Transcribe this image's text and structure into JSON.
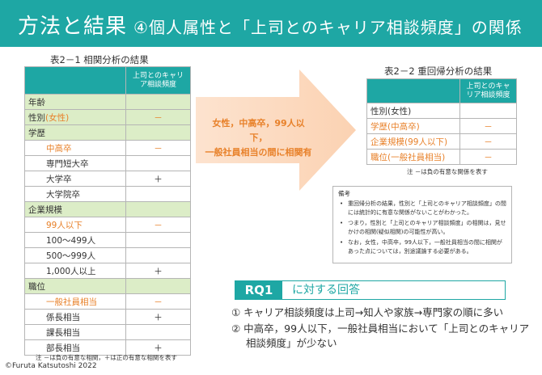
{
  "title": {
    "main": "方法と結果",
    "sub": "④個人属性と「上司とのキャリア相談頻度」の関係"
  },
  "table1": {
    "caption": "表2－1 相関分析の結果",
    "header": "上司とのキャリア相談頻度",
    "rows": [
      {
        "label": "年齢",
        "mark": "",
        "type": "cat"
      },
      {
        "label": "性別",
        "suffix": "(女性)",
        "mark": "－",
        "type": "cat"
      },
      {
        "label": "学歴",
        "mark": "",
        "type": "cat"
      },
      {
        "label": "中高卒",
        "mark": "－",
        "type": "sub-orange"
      },
      {
        "label": "専門短大卒",
        "mark": "",
        "type": "sub"
      },
      {
        "label": "大学卒",
        "mark": "＋",
        "type": "sub"
      },
      {
        "label": "大学院卒",
        "mark": "",
        "type": "sub"
      },
      {
        "label": "企業規模",
        "mark": "",
        "type": "cat"
      },
      {
        "label": "99人以下",
        "mark": "－",
        "type": "sub-orange"
      },
      {
        "label": "100～499人",
        "mark": "",
        "type": "sub"
      },
      {
        "label": "500～999人",
        "mark": "",
        "type": "sub"
      },
      {
        "label": "1,000人以上",
        "mark": "＋",
        "type": "sub"
      },
      {
        "label": "職位",
        "mark": "",
        "type": "cat"
      },
      {
        "label": "一般社員相当",
        "mark": "－",
        "type": "sub-orange"
      },
      {
        "label": "係長相当",
        "mark": "＋",
        "type": "sub"
      },
      {
        "label": "課長相当",
        "mark": "",
        "type": "sub"
      },
      {
        "label": "部長相当",
        "mark": "＋",
        "type": "sub"
      }
    ],
    "note": "注 －は負の有意な相関，＋は正の有意な相関を表す"
  },
  "arrow": {
    "line1": "女性，中高卒，99人以下，",
    "line2": "一般社員相当の間に相関有"
  },
  "table2": {
    "caption": "表2－2 重回帰分析の結果",
    "header": "上司とのキャリア相談頻度",
    "rows": [
      {
        "label": "性別(女性)",
        "mark": "",
        "orange": false
      },
      {
        "label": "学歴(中高卒)",
        "mark": "－",
        "orange": true
      },
      {
        "label": "企業規模(99人以下)",
        "mark": "－",
        "orange": true
      },
      {
        "label": "職位(一般社員相当)",
        "mark": "－",
        "orange": true
      }
    ],
    "note": "注 －は負の有意な関係を表す"
  },
  "remarks": {
    "heading": "備考",
    "items": [
      "重回帰分析の結果，性別と「上司とのキャリア相談頻度」の間には統計的に有意な関係がないことがわかった。",
      "つまり，性別と「上司とのキャリア相談頻度」の相関は，見せかけの相関(疑似相関)の可能性が高い。",
      "なお，女性，中高卒，99人以下，一般社員相当の間に相関があった点については，別途議論する必要がある。"
    ]
  },
  "rq": {
    "label": "RQ1",
    "text": "に対する回答"
  },
  "conclusions": {
    "c1": "① キャリア相談頻度は上司→知人や家族→専門家の順に多い",
    "c2_line1": "② 中高卒，99人以下，一般社員相当において「上司とのキャリア",
    "c2_line2": "相談頻度」が少ない"
  },
  "copyright": "©Furuta Katsutoshi 2022",
  "colors": {
    "teal": "#1ea7a4",
    "green": "#dcedc7",
    "orange": "#e8812a"
  }
}
